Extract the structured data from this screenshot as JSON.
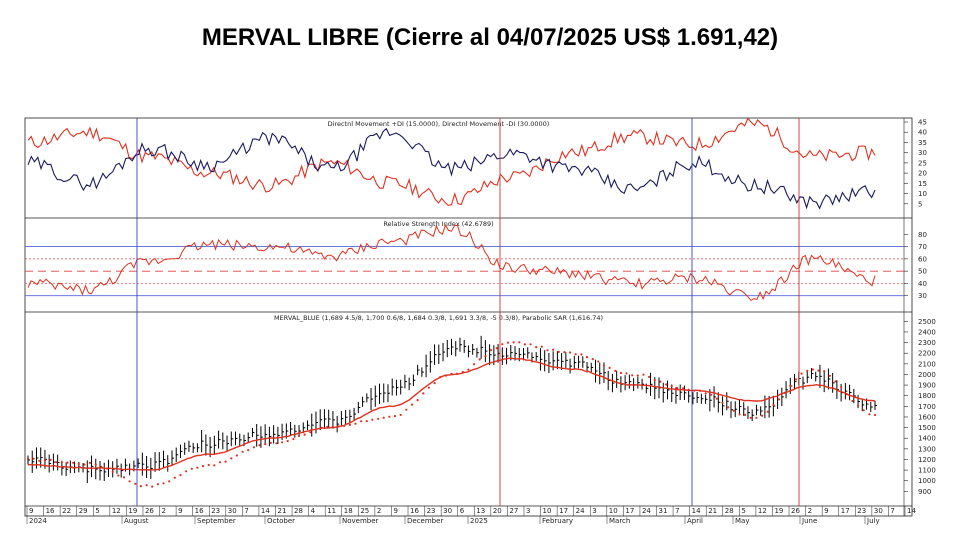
{
  "title": "MERVAL LIBRE (Cierre al 04/07/2025 US$ 1.691,42)",
  "colors": {
    "plus_di": "#1a1a5e",
    "minus_di": "#e03020",
    "rsi": "#e03020",
    "price_bars": "#000000",
    "moving_average": "#e03020",
    "sar": "#e03020",
    "vline_blue": "#3344cc",
    "vline_red": "#cc3333",
    "ref_blue": "#5566dd",
    "ref_red": "#e04040"
  },
  "chart_data": [
    {
      "id": "dmi",
      "type": "line",
      "title": "Directnl Movement +DI (15.0000), Directnl Movement -DI (30.0000)",
      "ylim": [
        0,
        45
      ],
      "yticks": [
        5,
        10,
        15,
        20,
        25,
        30,
        35,
        40,
        45
      ],
      "x": [
        0,
        20,
        40,
        60,
        80,
        100,
        120,
        140,
        160,
        180,
        200,
        220,
        240,
        260,
        280
      ],
      "series": [
        {
          "name": "+DI",
          "values": [
            25,
            15,
            32,
            24,
            37,
            22,
            40,
            22,
            30,
            22,
            12,
            25,
            14,
            6,
            11
          ]
        },
        {
          "name": "-DI",
          "values": [
            35,
            40,
            28,
            20,
            14,
            25,
            15,
            7,
            18,
            30,
            38,
            34,
            44,
            28,
            30
          ]
        }
      ]
    },
    {
      "id": "rsi",
      "type": "line",
      "title": "Relative Strength Index (42.6789)",
      "ylim": [
        20,
        90
      ],
      "yticks": [
        30,
        40,
        50,
        60,
        70,
        80
      ],
      "reference_lines": [
        30,
        40,
        50,
        60,
        70
      ],
      "x": [
        0,
        20,
        40,
        60,
        80,
        100,
        120,
        140,
        160,
        180,
        200,
        220,
        240,
        260,
        280
      ],
      "series": [
        {
          "name": "RSI",
          "values": [
            40,
            35,
            58,
            72,
            70,
            62,
            74,
            84,
            52,
            48,
            40,
            44,
            30,
            60,
            42
          ]
        }
      ]
    },
    {
      "id": "price",
      "type": "line",
      "title": "MERVAL_BLUE (1,689 4.5/8, 1,700 0.6/8, 1,684 0.3/8, 1,691 3.3/8, -5 0.3/8), Parabolic SAR (1,616.74)",
      "ylim": [
        800,
        2550
      ],
      "yticks": [
        900,
        1000,
        1100,
        1200,
        1300,
        1400,
        1500,
        1600,
        1700,
        1800,
        1900,
        2000,
        2100,
        2200,
        2300,
        2400,
        2500
      ],
      "x": [
        0,
        20,
        40,
        60,
        80,
        100,
        120,
        140,
        160,
        180,
        200,
        220,
        240,
        260,
        280
      ],
      "series": [
        {
          "name": "MERVAL_BLUE",
          "values": [
            1200,
            1100,
            1150,
            1350,
            1450,
            1550,
            1850,
            2250,
            2200,
            2100,
            1900,
            1800,
            1650,
            1980,
            1690
          ]
        },
        {
          "name": "Moving Average",
          "values": [
            1150,
            1120,
            1100,
            1250,
            1400,
            1500,
            1700,
            2000,
            2150,
            2050,
            1900,
            1850,
            1750,
            1900,
            1750
          ]
        },
        {
          "name": "Parabolic SAR",
          "values": [
            1200,
            1160,
            950,
            1150,
            1350,
            1500,
            1600,
            2000,
            2300,
            2200,
            2000,
            1850,
            1600,
            2050,
            1620
          ]
        }
      ]
    }
  ],
  "x_axis": {
    "labels": [
      "9",
      "16",
      "22",
      "29",
      "5",
      "12",
      "19",
      "26",
      "2",
      "9",
      "16",
      "23",
      "30",
      "7",
      "14",
      "21",
      "28",
      "4",
      "11",
      "18",
      "25",
      "2",
      "9",
      "16",
      "23",
      "30",
      "6",
      "13",
      "20",
      "27",
      "3",
      "10",
      "17",
      "24",
      "3",
      "10",
      "17",
      "24",
      "31",
      "7",
      "14",
      "21",
      "28",
      "5",
      "12",
      "19",
      "26",
      "2",
      "9",
      "17",
      "23",
      "30",
      "7",
      "14"
    ],
    "months": [
      "2024",
      "August",
      "September",
      "October",
      "November",
      "December",
      "2025",
      "February",
      "March",
      "April",
      "May",
      "June",
      "July"
    ]
  },
  "vertical_markers": [
    {
      "color": "blue",
      "x": 52
    },
    {
      "color": "red",
      "x": 227
    },
    {
      "color": "blue",
      "x": 322
    },
    {
      "color": "red",
      "x": 375
    }
  ]
}
